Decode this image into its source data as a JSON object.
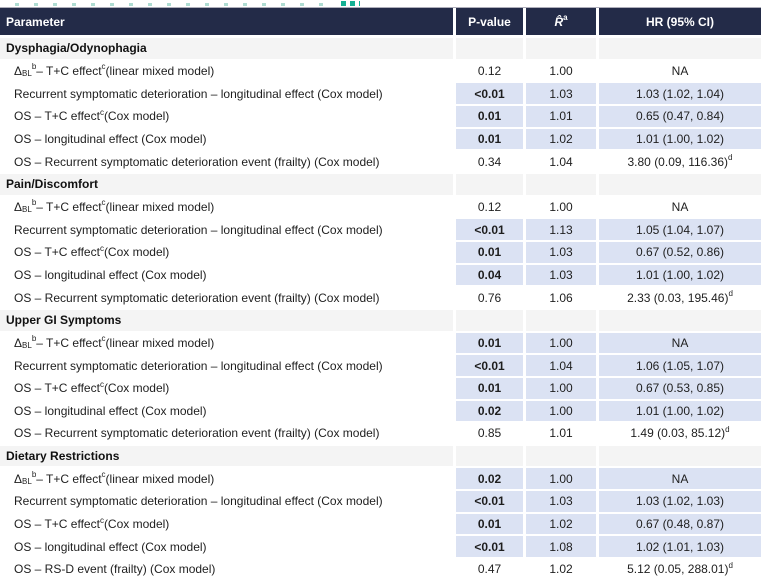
{
  "decor": {
    "clipped_title_fragment_color": "#14b094"
  },
  "table": {
    "colors": {
      "header_bg": "#232b48",
      "header_text": "#ffffff",
      "highlight": "#dbe2f3",
      "section_row_bg": "#f4f4f4"
    },
    "columns": [
      "Parameter",
      "P-value",
      [
        {
          "t": "R̂",
          "i": true
        },
        {
          "sup": "a"
        }
      ],
      "HR (95% CI)"
    ],
    "sections": [
      {
        "title": "Dysphagia/Odynophagia",
        "rows": [
          {
            "param": [
              {
                "t": "Δ"
              },
              {
                "sub": "BL"
              },
              {
                "sup": "b"
              },
              {
                "t": " – T+C effect"
              },
              {
                "sup": "c"
              },
              {
                "t": " (linear mixed model)"
              }
            ],
            "p": "0.12",
            "r": "1.00",
            "hr": "NA",
            "sig": false
          },
          {
            "param": "Recurrent symptomatic deterioration – longitudinal effect (Cox model)",
            "p": "<0.01",
            "r": "1.03",
            "hr": "1.03 (1.02, 1.04)",
            "sig": true
          },
          {
            "param": [
              {
                "t": "OS – T+C effect"
              },
              {
                "sup": "c"
              },
              {
                "t": " (Cox model)"
              }
            ],
            "p": "0.01",
            "r": "1.01",
            "hr": "0.65 (0.47, 0.84)",
            "sig": true
          },
          {
            "param": "OS – longitudinal effect (Cox model)",
            "p": "0.01",
            "r": "1.02",
            "hr": "1.01 (1.00, 1.02)",
            "sig": true
          },
          {
            "param": "OS – Recurrent symptomatic deterioration event (frailty) (Cox model)",
            "p": "0.34",
            "r": "1.04",
            "hr": [
              {
                "t": "3.80 (0.09, 116.36)"
              },
              {
                "sup": "d"
              }
            ],
            "sig": false
          }
        ]
      },
      {
        "title": "Pain/Discomfort",
        "rows": [
          {
            "param": [
              {
                "t": "Δ"
              },
              {
                "sub": "BL"
              },
              {
                "sup": "b"
              },
              {
                "t": " – T+C effect"
              },
              {
                "sup": "c"
              },
              {
                "t": " (linear mixed model)"
              }
            ],
            "p": "0.12",
            "r": "1.00",
            "hr": "NA",
            "sig": false
          },
          {
            "param": "Recurrent symptomatic deterioration – longitudinal effect (Cox model)",
            "p": "<0.01",
            "r": "1.13",
            "hr": "1.05 (1.04, 1.07)",
            "sig": true
          },
          {
            "param": [
              {
                "t": "OS – T+C effect"
              },
              {
                "sup": "c"
              },
              {
                "t": " (Cox model)"
              }
            ],
            "p": "0.01",
            "r": "1.03",
            "hr": "0.67 (0.52, 0.86)",
            "sig": true
          },
          {
            "param": "OS – longitudinal effect (Cox model)",
            "p": "0.04",
            "r": "1.03",
            "hr": "1.01 (1.00, 1.02)",
            "sig": true
          },
          {
            "param": "OS – Recurrent symptomatic deterioration event (frailty) (Cox model)",
            "p": "0.76",
            "r": "1.06",
            "hr": [
              {
                "t": "2.33 (0.03, 195.46)"
              },
              {
                "sup": "d"
              }
            ],
            "sig": false
          }
        ]
      },
      {
        "title": "Upper GI Symptoms",
        "rows": [
          {
            "param": [
              {
                "t": "Δ"
              },
              {
                "sub": "BL"
              },
              {
                "sup": "b"
              },
              {
                "t": " – T+C effect"
              },
              {
                "sup": "c"
              },
              {
                "t": " (linear mixed model)"
              }
            ],
            "p": "0.01",
            "r": "1.00",
            "hr": "NA",
            "sig": true
          },
          {
            "param": "Recurrent symptomatic deterioration – longitudinal effect (Cox model)",
            "p": "<0.01",
            "r": "1.04",
            "hr": "1.06 (1.05, 1.07)",
            "sig": true
          },
          {
            "param": [
              {
                "t": "OS – T+C effect"
              },
              {
                "sup": "c"
              },
              {
                "t": " (Cox model)"
              }
            ],
            "p": "0.01",
            "r": "1.00",
            "hr": "0.67 (0.53, 0.85)",
            "sig": true
          },
          {
            "param": "OS – longitudinal effect (Cox model)",
            "p": "0.02",
            "r": "1.00",
            "hr": "1.01 (1.00, 1.02)",
            "sig": true
          },
          {
            "param": "OS – Recurrent symptomatic deterioration event (frailty) (Cox model)",
            "p": "0.85",
            "r": "1.01",
            "hr": [
              {
                "t": "1.49 (0.03, 85.12)"
              },
              {
                "sup": "d"
              }
            ],
            "sig": false
          }
        ]
      },
      {
        "title": "Dietary Restrictions",
        "rows": [
          {
            "param": [
              {
                "t": "Δ"
              },
              {
                "sub": "BL"
              },
              {
                "sup": "b"
              },
              {
                "t": " – T+C effect"
              },
              {
                "sup": "c"
              },
              {
                "t": " (linear mixed model)"
              }
            ],
            "p": "0.02",
            "r": "1.00",
            "hr": "NA",
            "sig": true
          },
          {
            "param": "Recurrent symptomatic deterioration – longitudinal effect (Cox model)",
            "p": "<0.01",
            "r": "1.03",
            "hr": "1.03 (1.02, 1.03)",
            "sig": true
          },
          {
            "param": [
              {
                "t": "OS – T+C effect"
              },
              {
                "sup": "c"
              },
              {
                "t": " (Cox model)"
              }
            ],
            "p": "0.01",
            "r": "1.02",
            "hr": "0.67 (0.48, 0.87)",
            "sig": true
          },
          {
            "param": "OS – longitudinal effect (Cox model)",
            "p": "<0.01",
            "r": "1.08",
            "hr": "1.02 (1.01, 1.03)",
            "sig": true
          },
          {
            "param": "OS – RS-D event (frailty) (Cox model)",
            "p": "0.47",
            "r": "1.02",
            "hr": [
              {
                "t": "5.12 (0.05, 288.01)"
              },
              {
                "sup": "d"
              }
            ],
            "sig": false
          }
        ]
      }
    ]
  }
}
